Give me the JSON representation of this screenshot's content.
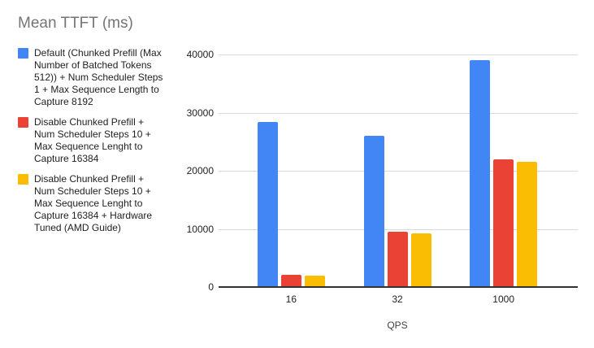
{
  "chart_data": {
    "type": "bar",
    "title": "Mean TTFT (ms)",
    "xlabel": "QPS",
    "ylabel": "",
    "categories": [
      "16",
      "32",
      "1000"
    ],
    "series": [
      {
        "name": "Default (Chunked Prefill (Max Number of Batched Tokens 512)) + Num Scheduler Steps 1 + Max Sequence Length to Capture 8192",
        "color": "#4285F4",
        "values": [
          28400,
          26000,
          39000
        ]
      },
      {
        "name": "Disable Chunked Prefill + Num Scheduler Steps 10 + Max Sequence Lenght to Capture 16384",
        "color": "#EA4335",
        "values": [
          2100,
          9500,
          21900
        ]
      },
      {
        "name": "Disable Chunked Prefill + Num Scheduler Steps 10 + Max Sequence Lenght to Capture 16384 + Hardware Tuned (AMD Guide)",
        "color": "#FBBC04",
        "values": [
          2000,
          9300,
          21500
        ]
      }
    ],
    "ylim": [
      0,
      40000
    ],
    "yticks": [
      0,
      10000,
      20000,
      30000,
      40000
    ],
    "grid": true,
    "legend_position": "left",
    "colors": {
      "title_text": "#757575",
      "legend_text": "#212121",
      "axis_text": "#1f1f1f",
      "gridline": "#d9d9d9",
      "baseline": "#333333",
      "background": "#ffffff"
    }
  }
}
